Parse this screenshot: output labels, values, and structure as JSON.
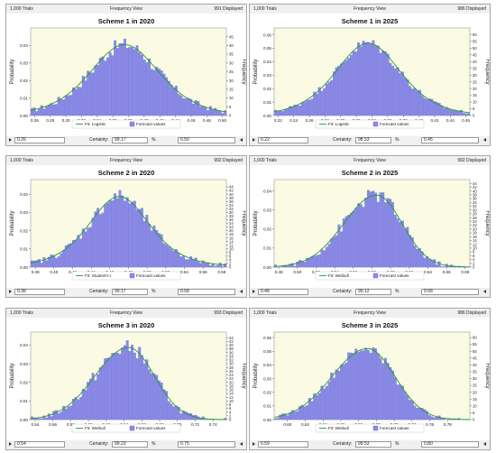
{
  "colors": {
    "bar": "#8a8ae6",
    "bar_stroke": "#6a6ad0",
    "fit": "#1f9a3a",
    "plot_bg": "#fbfbe3"
  },
  "panels": [
    {
      "trials": "1,000 Trials",
      "view": "Frequency View",
      "displayed": "991 Displayed",
      "left_value": "0.26",
      "certainty_label": "Certainty:",
      "certainty": "99.17",
      "pct": "%",
      "right_value": "0.50",
      "legend_fit": "Fit: Logistic",
      "legend_forecast": "Forecast values",
      "fit": "logistic",
      "mu": 0.375,
      "s": 0.03,
      "peak_bar": 0.046,
      "bar_variance": 0.004,
      "chart_data": {
        "type": "bar",
        "title": "Scheme 1 in 2020",
        "xlabel": "",
        "ylabel": "Probability",
        "y2label": "Frequency",
        "xlim": [
          0.255,
          0.505
        ],
        "ylim": [
          0,
          0.05
        ],
        "y2lim": [
          0,
          50
        ],
        "xticks": [
          "0.26",
          "0.28",
          "0.30",
          "0.32",
          "0.34",
          "0.36",
          "0.38",
          "0.40",
          "0.42",
          "0.44",
          "0.46",
          "0.48",
          "0.50"
        ],
        "yticks": [
          "0.00",
          "0.01",
          "0.02",
          "0.03",
          "0.04"
        ],
        "y2ticks": [
          "0",
          "5",
          "10",
          "15",
          "20",
          "25",
          "30",
          "35",
          "40",
          "45"
        ]
      }
    },
    {
      "trials": "1,000 Trials",
      "view": "Frequency View",
      "displayed": "986 Displayed",
      "left_value": "0.22",
      "certainty_label": "Certainty:",
      "certainty": "98.53",
      "pct": "%",
      "right_value": "0.45",
      "legend_fit": "Fit: Logistic",
      "legend_forecast": "Forecast values",
      "fit": "logistic",
      "mu": 0.335,
      "s": 0.028,
      "peak_bar": 0.061,
      "bar_variance": 0.004,
      "chart_data": {
        "type": "bar",
        "title": "Scheme 1 in 2025",
        "xlabel": "",
        "ylabel": "Probability",
        "y2label": "Frequency",
        "xlim": [
          0.215,
          0.465
        ],
        "ylim": [
          0,
          0.065
        ],
        "y2lim": [
          0,
          65
        ],
        "xticks": [
          "0.22",
          "0.24",
          "0.26",
          "0.28",
          "0.30",
          "0.32",
          "0.34",
          "0.36",
          "0.38",
          "0.40",
          "0.42",
          "0.44",
          "0.46"
        ],
        "yticks": [
          "0.00",
          "0.01",
          "0.02",
          "0.03",
          "0.04",
          "0.05",
          "0.06"
        ],
        "y2ticks": [
          "0",
          "5",
          "10",
          "15",
          "20",
          "25",
          "30",
          "35",
          "40",
          "45",
          "50",
          "55",
          "60"
        ]
      }
    },
    {
      "trials": "1,000 Trials",
      "view": "Frequency View",
      "displayed": "992 Displayed",
      "left_value": "0.38",
      "certainty_label": "Certainty:",
      "certainty": "99.17",
      "pct": "%",
      "right_value": "0.58",
      "legend_fit": "Fit: Student's t",
      "legend_forecast": "Forecast values",
      "fit": "student_t",
      "mu": 0.47,
      "s": 0.034,
      "peak_bar": 0.044,
      "bar_variance": 0.004,
      "chart_data": {
        "type": "bar",
        "title": "Scheme 2 in 2020",
        "xlabel": "",
        "ylabel": "Probability",
        "y2label": "Frequency",
        "xlim": [
          0.375,
          0.585
        ],
        "ylim": [
          0,
          0.048
        ],
        "y2lim": [
          0,
          48
        ],
        "xticks": [
          "0.38",
          "0.40",
          "0.42",
          "0.44",
          "0.46",
          "0.48",
          "0.50",
          "0.52",
          "0.54",
          "0.56",
          "0.58"
        ],
        "yticks": [
          "0.00",
          "0.01",
          "0.02",
          "0.03",
          "0.04"
        ],
        "y2ticks": [
          "0",
          "2",
          "4",
          "6",
          "8",
          "10",
          "12",
          "14",
          "16",
          "18",
          "20",
          "22",
          "24",
          "26",
          "28",
          "30",
          "32",
          "34",
          "36",
          "38",
          "40",
          "42",
          "44"
        ]
      }
    },
    {
      "trials": "1,000 Trials",
      "view": "Frequency View",
      "displayed": "992 Displayed",
      "left_value": "0.48",
      "certainty_label": "Certainty:",
      "certainty": "99.12",
      "pct": "%",
      "right_value": "0.68",
      "legend_fit": "Fit: Weibull",
      "legend_forecast": "Forecast values",
      "fit": "weibull",
      "mu": 0.585,
      "s": 0.03,
      "peak_bar": 0.043,
      "bar_variance": 0.004,
      "chart_data": {
        "type": "bar",
        "title": "Scheme 2 in 2025",
        "xlabel": "",
        "ylabel": "Probability",
        "y2label": "Frequency",
        "xlim": [
          0.475,
          0.685
        ],
        "ylim": [
          0,
          0.046
        ],
        "y2lim": [
          0,
          46
        ],
        "xticks": [
          "0.48",
          "0.50",
          "0.52",
          "0.54",
          "0.56",
          "0.58",
          "0.60",
          "0.62",
          "0.64",
          "0.66",
          "0.68"
        ],
        "yticks": [
          "0.00",
          "0.01",
          "0.02",
          "0.03",
          "0.04"
        ],
        "y2ticks": [
          "0",
          "2",
          "4",
          "6",
          "8",
          "10",
          "12",
          "14",
          "16",
          "18",
          "20",
          "22",
          "24",
          "26",
          "28",
          "30",
          "32",
          "34",
          "36",
          "38",
          "40",
          "42",
          "44"
        ]
      }
    },
    {
      "trials": "1,000 Trials",
      "view": "Frequency View",
      "displayed": "993 Displayed",
      "left_value": "0.54",
      "certainty_label": "Certainty:",
      "certainty": "99.23",
      "pct": "%",
      "right_value": "0.75",
      "legend_fit": "Fit: Weibull",
      "legend_forecast": "Forecast values",
      "fit": "weibull",
      "mu": 0.645,
      "s": 0.032,
      "peak_bar": 0.044,
      "bar_variance": 0.004,
      "chart_data": {
        "type": "bar",
        "title": "Scheme 3 in 2020",
        "xlabel": "",
        "ylabel": "Probability",
        "y2label": "Frequency",
        "xlim": [
          0.535,
          0.755
        ],
        "ylim": [
          0,
          0.047
        ],
        "y2lim": [
          0,
          47
        ],
        "xticks": [
          "0.54",
          "0.56",
          "0.58",
          "0.60",
          "0.62",
          "0.64",
          "0.66",
          "0.68",
          "0.70",
          "0.72",
          "0.74"
        ],
        "yticks": [
          "0.00",
          "0.01",
          "0.02",
          "0.03",
          "0.04"
        ],
        "y2ticks": [
          "0",
          "2",
          "4",
          "6",
          "8",
          "10",
          "12",
          "14",
          "16",
          "18",
          "20",
          "22",
          "24",
          "26",
          "28",
          "30",
          "32",
          "34",
          "36",
          "38",
          "40",
          "42",
          "44"
        ]
      }
    },
    {
      "trials": "1,000 Trials",
      "view": "Frequency View",
      "displayed": "986 Displayed",
      "left_value": "0.59",
      "certainty_label": "Certainty:",
      "certainty": "99.53",
      "pct": "%",
      "right_value": "0.80",
      "legend_fit": "Fit: Weibull",
      "legend_forecast": "Forecast values",
      "fit": "weibull",
      "mu": 0.69,
      "s": 0.034,
      "peak_bar": 0.059,
      "bar_variance": 0.004,
      "chart_data": {
        "type": "bar",
        "title": "Scheme 3 in 2025",
        "xlabel": "",
        "ylabel": "Probability",
        "y2label": "Frequency",
        "xlim": [
          0.585,
          0.805
        ],
        "ylim": [
          0,
          0.064
        ],
        "y2lim": [
          0,
          64
        ],
        "xticks": [
          "0.60",
          "0.62",
          "0.64",
          "0.66",
          "0.68",
          "0.70",
          "0.72",
          "0.74",
          "0.76",
          "0.78"
        ],
        "yticks": [
          "0.00",
          "0.01",
          "0.02",
          "0.03",
          "0.04",
          "0.05",
          "0.06"
        ],
        "y2ticks": [
          "0",
          "5",
          "10",
          "15",
          "20",
          "25",
          "30",
          "35",
          "40",
          "45",
          "50",
          "55",
          "60"
        ]
      }
    }
  ]
}
